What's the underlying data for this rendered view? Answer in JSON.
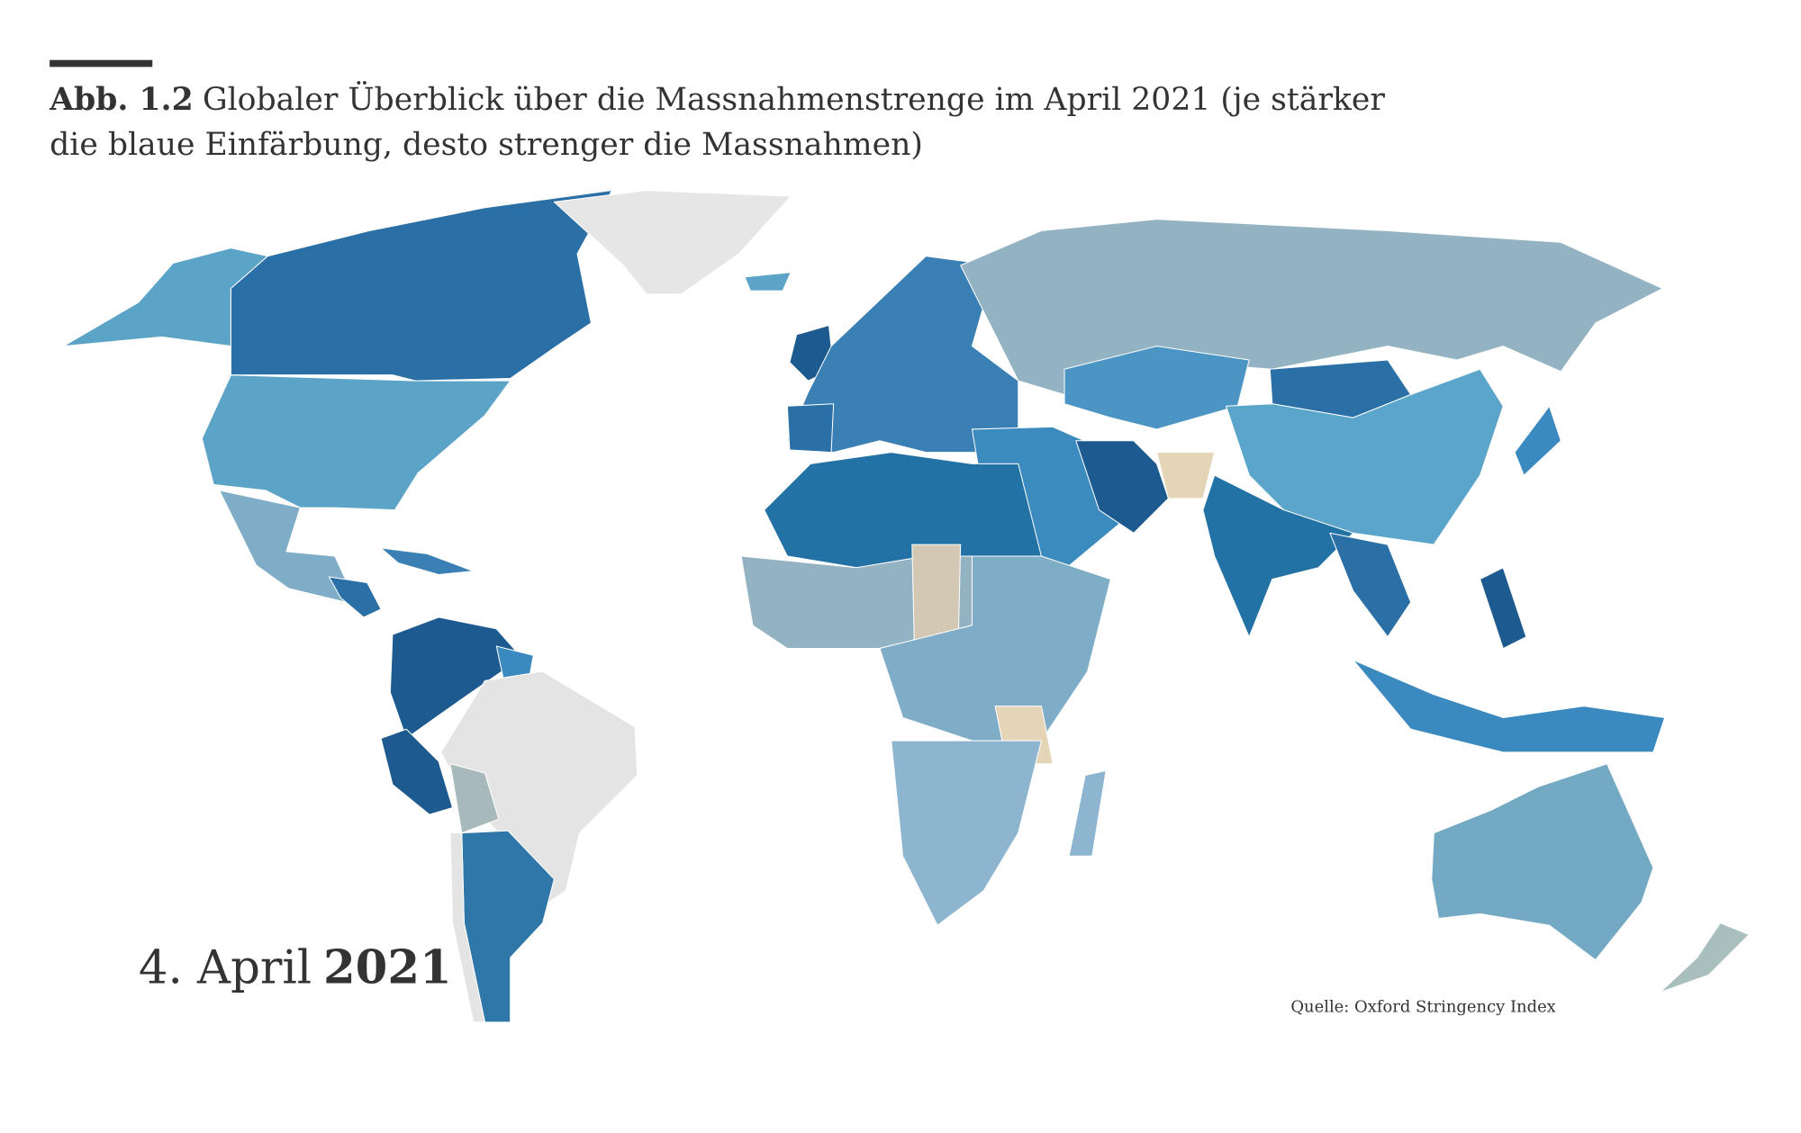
{
  "header": {
    "label": "Abb. 1.2",
    "title_lines": [
      "Globaler Überblick über die Massnahmenstrenge im April 2021 (je stärker",
      "die blaue Einfärbung, desto strenger die Massnahmen)"
    ]
  },
  "date": {
    "day": "4. April",
    "year": "2021"
  },
  "source": "Quelle: Oxford Stringency Index"
}
